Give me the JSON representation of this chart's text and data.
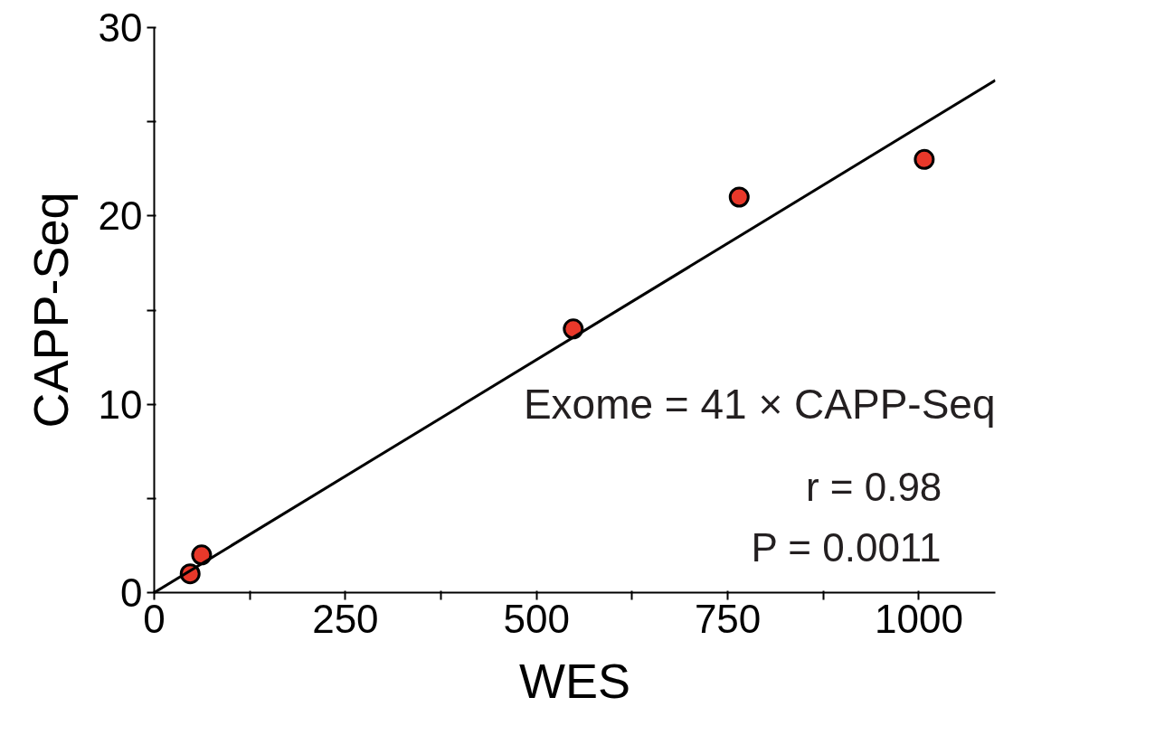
{
  "chart_data": {
    "type": "scatter",
    "xlabel": "WES",
    "ylabel": "CAPP-Seq",
    "series": [
      {
        "marker": "circle",
        "color": "#e8382a",
        "x": [
          47,
          62,
          548,
          765,
          1007
        ],
        "values": [
          1.0,
          2.0,
          14.0,
          21.0,
          23.0
        ]
      },
      {
        "type": "line",
        "marker": "none",
        "color": "#000000",
        "x": [
          0,
          1100
        ],
        "values": [
          0,
          27.2
        ]
      }
    ],
    "xlim": [
      0,
      1100
    ],
    "ylim": [
      0,
      30
    ],
    "xticks": [
      0,
      {
        "value": 125,
        "label": null
      },
      250,
      {
        "value": 375,
        "label": null
      },
      500,
      {
        "value": 625,
        "label": null
      },
      750,
      {
        "value": 875,
        "label": null
      },
      1000
    ],
    "yticks": [
      0,
      {
        "value": 5,
        "label": null
      },
      10,
      {
        "value": 15,
        "label": null
      },
      20,
      {
        "value": 25,
        "label": null
      },
      30
    ],
    "grid": false,
    "annotations": [
      "Exome = 41 × CAPP-Seq",
      "r = 0.98",
      "P = 0.0011"
    ]
  }
}
